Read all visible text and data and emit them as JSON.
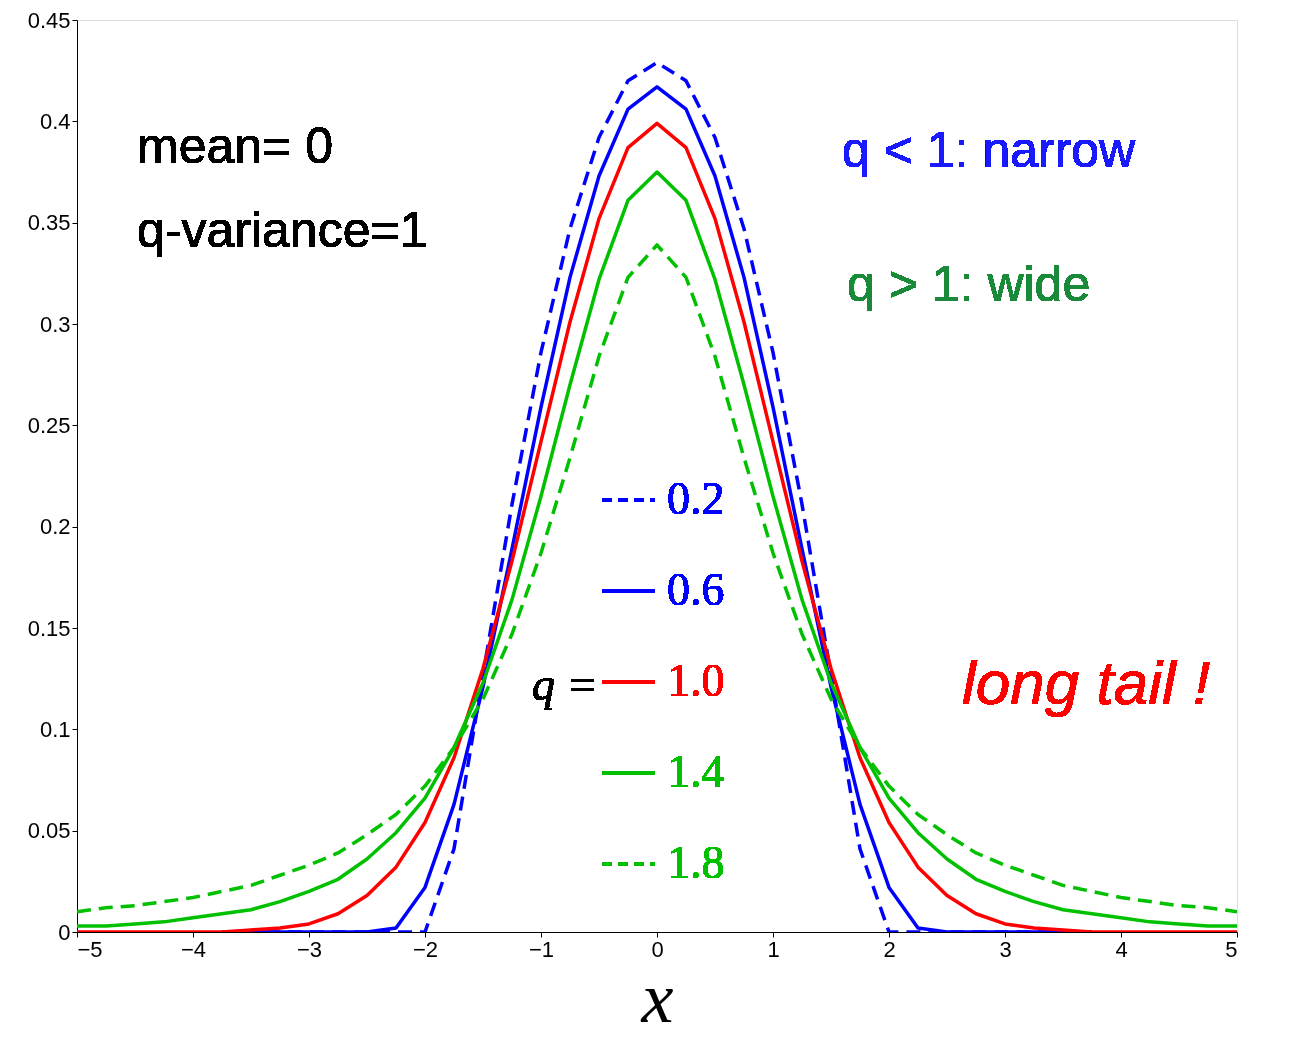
{
  "chart_data": {
    "type": "line",
    "xlabel": "x",
    "legend": "bottom",
    "grid": false,
    "marker": "none",
    "x": [
      -5,
      -4.75,
      -4.5,
      -4.25,
      -4,
      -3.75,
      -3.5,
      -3.25,
      -3,
      -2.75,
      -2.5,
      -2.25,
      -2,
      -1.75,
      -1.5,
      -1.25,
      -1,
      -0.75,
      -0.5,
      -0.25,
      0,
      0.25,
      0.5,
      0.75,
      1,
      1.25,
      1.5,
      1.75,
      2,
      2.25,
      2.5,
      2.75,
      3,
      3.25,
      3.5,
      3.75,
      4,
      4.25,
      4.5,
      4.75,
      5
    ],
    "xlim": [
      -5,
      5
    ],
    "ylim": [
      0,
      0.45
    ],
    "xticks": [
      {
        "value": -5,
        "label": "−5"
      },
      {
        "value": -4,
        "label": "−4"
      },
      {
        "value": -3,
        "label": "−3"
      },
      {
        "value": -2,
        "label": "−2"
      },
      {
        "value": -1,
        "label": "−1"
      },
      0,
      1,
      2,
      3,
      4,
      5
    ],
    "yticks": [
      0,
      0.05,
      0.1,
      0.15,
      0.2,
      0.25,
      0.3,
      0.35,
      0.4,
      0.45
    ],
    "series": [
      {
        "name": "0.2",
        "color": "#0000ff",
        "line_style": "dashed",
        "values": [
          null,
          null,
          null,
          null,
          null,
          0,
          0,
          0,
          0,
          0,
          0,
          0,
          0,
          0.041,
          0.127,
          0.211,
          0.286,
          0.347,
          0.392,
          0.42,
          0.429,
          0.42,
          0.392,
          0.347,
          0.286,
          0.211,
          0.127,
          0.041,
          0,
          0,
          0,
          0,
          0,
          0,
          0,
          0,
          null,
          null,
          null,
          null,
          null
        ]
      },
      {
        "name": "0.6",
        "color": "#0000ff",
        "line_style": "solid",
        "values": [
          null,
          null,
          null,
          null,
          null,
          0,
          0,
          0,
          0,
          0,
          0,
          0.002,
          0.022,
          0.063,
          0.121,
          0.189,
          0.259,
          0.323,
          0.373,
          0.406,
          0.417,
          0.406,
          0.373,
          0.323,
          0.259,
          0.189,
          0.121,
          0.063,
          0.022,
          0.002,
          0,
          0,
          0,
          0,
          0,
          0,
          null,
          null,
          null,
          null,
          null
        ]
      },
      {
        "name": "1.0",
        "color": "#ff0000",
        "line_style": "solid",
        "values": [
          0,
          0,
          0,
          0,
          0,
          0,
          0.001,
          0.002,
          0.004,
          0.009,
          0.018,
          0.032,
          0.054,
          0.086,
          0.13,
          0.183,
          0.242,
          0.301,
          0.352,
          0.387,
          0.399,
          0.387,
          0.352,
          0.301,
          0.242,
          0.183,
          0.13,
          0.086,
          0.054,
          0.032,
          0.018,
          0.009,
          0.004,
          0.002,
          0.001,
          0,
          0,
          0,
          0,
          0,
          0
        ]
      },
      {
        "name": "1.4",
        "color": "#00c000",
        "line_style": "solid",
        "values": [
          0.003,
          0.003,
          0.004,
          0.005,
          0.007,
          0.009,
          0.011,
          0.015,
          0.02,
          0.026,
          0.036,
          0.049,
          0.066,
          0.091,
          0.123,
          0.164,
          0.215,
          0.27,
          0.322,
          0.361,
          0.375,
          0.361,
          0.322,
          0.27,
          0.215,
          0.164,
          0.123,
          0.091,
          0.066,
          0.049,
          0.036,
          0.026,
          0.02,
          0.015,
          0.011,
          0.009,
          0.007,
          0.005,
          0.004,
          0.003,
          0.003
        ]
      },
      {
        "name": "1.8",
        "color": "#00c000",
        "line_style": "dashed",
        "values": [
          0.01,
          0.012,
          0.013,
          0.015,
          0.017,
          0.02,
          0.023,
          0.028,
          0.033,
          0.039,
          0.048,
          0.058,
          0.072,
          0.091,
          0.115,
          0.147,
          0.187,
          0.234,
          0.284,
          0.323,
          0.339,
          0.323,
          0.284,
          0.234,
          0.187,
          0.147,
          0.115,
          0.091,
          0.072,
          0.058,
          0.048,
          0.039,
          0.033,
          0.028,
          0.023,
          0.02,
          0.017,
          0.015,
          0.013,
          0.012,
          0.01
        ]
      }
    ],
    "annotations": [
      "mean= 0",
      "q-variance=1",
      "q < 1: narrow",
      "q > 1: wide",
      "long tail !",
      "q ="
    ]
  }
}
